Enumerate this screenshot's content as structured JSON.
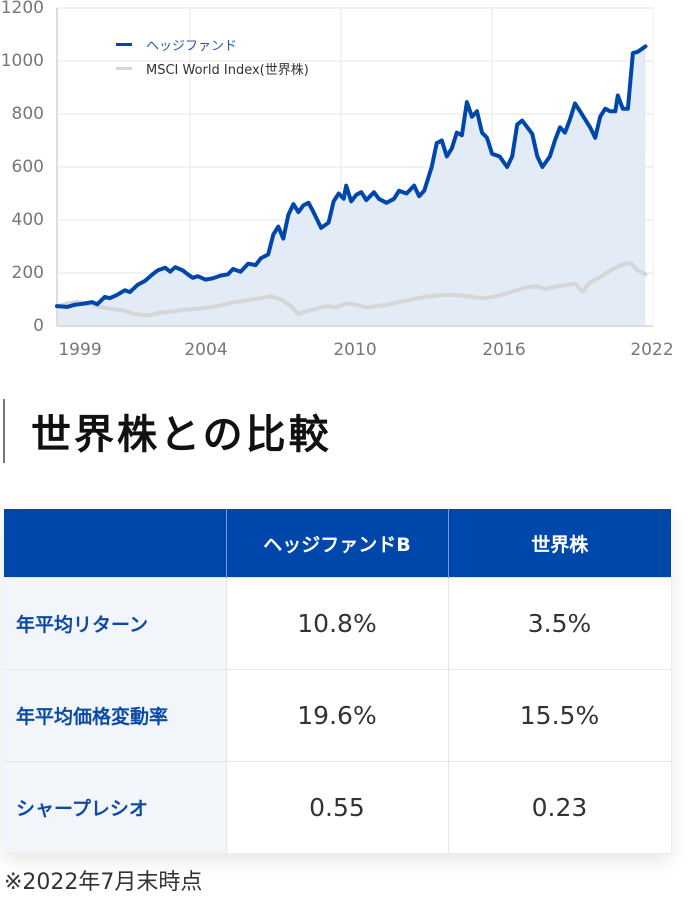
{
  "chart_data": {
    "type": "line",
    "title": "",
    "xlabel": "",
    "ylabel": "",
    "ylim": [
      0,
      1200
    ],
    "yticks": [
      0,
      200,
      400,
      600,
      800,
      1000,
      1200
    ],
    "xticks": [
      "1999",
      "2004",
      "2010",
      "2016",
      "2022"
    ],
    "xlim": [
      1998.9,
      2022.6
    ],
    "grid": true,
    "legend_position": "upper-left",
    "area_fill": "#e3ebf7",
    "series": [
      {
        "name": "ヘッジファンド",
        "color": "#0047ab",
        "points": [
          [
            1998.9,
            75
          ],
          [
            1999.3,
            72
          ],
          [
            1999.6,
            80
          ],
          [
            2000.0,
            85
          ],
          [
            2000.3,
            90
          ],
          [
            2000.5,
            82
          ],
          [
            2000.8,
            110
          ],
          [
            2001.0,
            105
          ],
          [
            2001.3,
            118
          ],
          [
            2001.6,
            135
          ],
          [
            2001.8,
            128
          ],
          [
            2002.1,
            155
          ],
          [
            2002.4,
            170
          ],
          [
            2002.7,
            195
          ],
          [
            2002.9,
            210
          ],
          [
            2003.2,
            220
          ],
          [
            2003.4,
            205
          ],
          [
            2003.6,
            222
          ],
          [
            2003.9,
            210
          ],
          [
            2004.1,
            195
          ],
          [
            2004.3,
            182
          ],
          [
            2004.5,
            188
          ],
          [
            2004.8,
            175
          ],
          [
            2005.1,
            180
          ],
          [
            2005.4,
            190
          ],
          [
            2005.7,
            195
          ],
          [
            2005.9,
            215
          ],
          [
            2006.2,
            205
          ],
          [
            2006.5,
            235
          ],
          [
            2006.8,
            230
          ],
          [
            2007.0,
            255
          ],
          [
            2007.3,
            270
          ],
          [
            2007.5,
            345
          ],
          [
            2007.7,
            375
          ],
          [
            2007.9,
            330
          ],
          [
            2008.1,
            420
          ],
          [
            2008.3,
            460
          ],
          [
            2008.5,
            430
          ],
          [
            2008.7,
            455
          ],
          [
            2008.9,
            465
          ],
          [
            2009.1,
            430
          ],
          [
            2009.4,
            370
          ],
          [
            2009.7,
            390
          ],
          [
            2009.9,
            470
          ],
          [
            2010.1,
            500
          ],
          [
            2010.3,
            480
          ],
          [
            2010.4,
            530
          ],
          [
            2010.6,
            470
          ],
          [
            2010.8,
            495
          ],
          [
            2011.0,
            505
          ],
          [
            2011.2,
            475
          ],
          [
            2011.5,
            505
          ],
          [
            2011.7,
            480
          ],
          [
            2012.0,
            465
          ],
          [
            2012.3,
            480
          ],
          [
            2012.5,
            510
          ],
          [
            2012.8,
            500
          ],
          [
            2013.1,
            530
          ],
          [
            2013.3,
            490
          ],
          [
            2013.5,
            510
          ],
          [
            2013.8,
            600
          ],
          [
            2014.0,
            690
          ],
          [
            2014.2,
            700
          ],
          [
            2014.4,
            640
          ],
          [
            2014.6,
            670
          ],
          [
            2014.8,
            730
          ],
          [
            2015.0,
            720
          ],
          [
            2015.2,
            845
          ],
          [
            2015.4,
            790
          ],
          [
            2015.6,
            810
          ],
          [
            2015.8,
            730
          ],
          [
            2016.0,
            710
          ],
          [
            2016.2,
            650
          ],
          [
            2016.5,
            640
          ],
          [
            2016.8,
            600
          ],
          [
            2017.0,
            640
          ],
          [
            2017.2,
            760
          ],
          [
            2017.4,
            775
          ],
          [
            2017.6,
            750
          ],
          [
            2017.8,
            725
          ],
          [
            2018.0,
            640
          ],
          [
            2018.2,
            600
          ],
          [
            2018.5,
            640
          ],
          [
            2018.7,
            700
          ],
          [
            2018.9,
            750
          ],
          [
            2019.1,
            730
          ],
          [
            2019.3,
            780
          ],
          [
            2019.5,
            840
          ],
          [
            2019.7,
            810
          ],
          [
            2019.9,
            780
          ],
          [
            2020.1,
            750
          ],
          [
            2020.3,
            710
          ],
          [
            2020.5,
            790
          ],
          [
            2020.7,
            820
          ],
          [
            2020.9,
            810
          ],
          [
            2021.1,
            810
          ],
          [
            2021.2,
            870
          ],
          [
            2021.4,
            820
          ],
          [
            2021.6,
            820
          ],
          [
            2021.8,
            1030
          ],
          [
            2022.0,
            1035
          ],
          [
            2022.3,
            1055
          ]
        ]
      },
      {
        "name": "MSCI World Index(世界株)",
        "color": "#d6d6d6",
        "points": [
          [
            1998.9,
            75
          ],
          [
            1999.3,
            85
          ],
          [
            1999.7,
            90
          ],
          [
            2000.1,
            85
          ],
          [
            2000.5,
            75
          ],
          [
            2001.0,
            65
          ],
          [
            2001.5,
            60
          ],
          [
            2002.0,
            45
          ],
          [
            2002.5,
            40
          ],
          [
            2003.0,
            50
          ],
          [
            2003.5,
            55
          ],
          [
            2004.0,
            62
          ],
          [
            2004.5,
            65
          ],
          [
            2005.0,
            70
          ],
          [
            2005.5,
            80
          ],
          [
            2006.0,
            90
          ],
          [
            2006.5,
            98
          ],
          [
            2007.0,
            105
          ],
          [
            2007.4,
            112
          ],
          [
            2007.8,
            100
          ],
          [
            2008.2,
            75
          ],
          [
            2008.5,
            45
          ],
          [
            2008.8,
            55
          ],
          [
            2009.2,
            65
          ],
          [
            2009.6,
            75
          ],
          [
            2010.0,
            70
          ],
          [
            2010.4,
            85
          ],
          [
            2010.8,
            80
          ],
          [
            2011.2,
            70
          ],
          [
            2011.6,
            75
          ],
          [
            2012.0,
            80
          ],
          [
            2012.5,
            90
          ],
          [
            2013.0,
            100
          ],
          [
            2013.5,
            110
          ],
          [
            2014.0,
            115
          ],
          [
            2014.5,
            118
          ],
          [
            2015.0,
            115
          ],
          [
            2015.4,
            110
          ],
          [
            2015.8,
            105
          ],
          [
            2016.2,
            110
          ],
          [
            2016.6,
            118
          ],
          [
            2017.0,
            130
          ],
          [
            2017.5,
            145
          ],
          [
            2018.0,
            150
          ],
          [
            2018.3,
            140
          ],
          [
            2018.8,
            150
          ],
          [
            2019.2,
            155
          ],
          [
            2019.5,
            160
          ],
          [
            2019.8,
            130
          ],
          [
            2020.1,
            165
          ],
          [
            2020.5,
            185
          ],
          [
            2021.0,
            215
          ],
          [
            2021.4,
            232
          ],
          [
            2021.7,
            238
          ],
          [
            2022.0,
            210
          ],
          [
            2022.3,
            195
          ]
        ]
      }
    ]
  },
  "chart": {
    "y_labels": [
      "1200",
      "1000",
      "800",
      "600",
      "400",
      "200",
      "0"
    ],
    "x_labels": [
      "1999",
      "2004",
      "2010",
      "2016",
      "2022"
    ],
    "legend": [
      {
        "label": "ヘッジファンド",
        "color": "#0047ab"
      },
      {
        "label": "MSCI World Index(世界株)",
        "color": "#d6d6d6"
      }
    ]
  },
  "section": {
    "title": "世界株との比較"
  },
  "table": {
    "headers": [
      "",
      "ヘッジファンドB",
      "世界株"
    ],
    "rows": [
      {
        "label": "年平均リターン",
        "hedge": "10.8%",
        "world": "3.5%"
      },
      {
        "label": "年平均価格変動率",
        "hedge": "19.6%",
        "world": "15.5%"
      },
      {
        "label": "シャープレシオ",
        "hedge": "0.55",
        "world": "0.23"
      }
    ]
  },
  "footnote": "※2022年7月末時点",
  "colors": {
    "accent": "#0047ab",
    "row_label": "#0c4aa6",
    "row_label_bg": "#f2f5fa",
    "msci": "#d6d6d6",
    "area": "#e3ebf7"
  }
}
